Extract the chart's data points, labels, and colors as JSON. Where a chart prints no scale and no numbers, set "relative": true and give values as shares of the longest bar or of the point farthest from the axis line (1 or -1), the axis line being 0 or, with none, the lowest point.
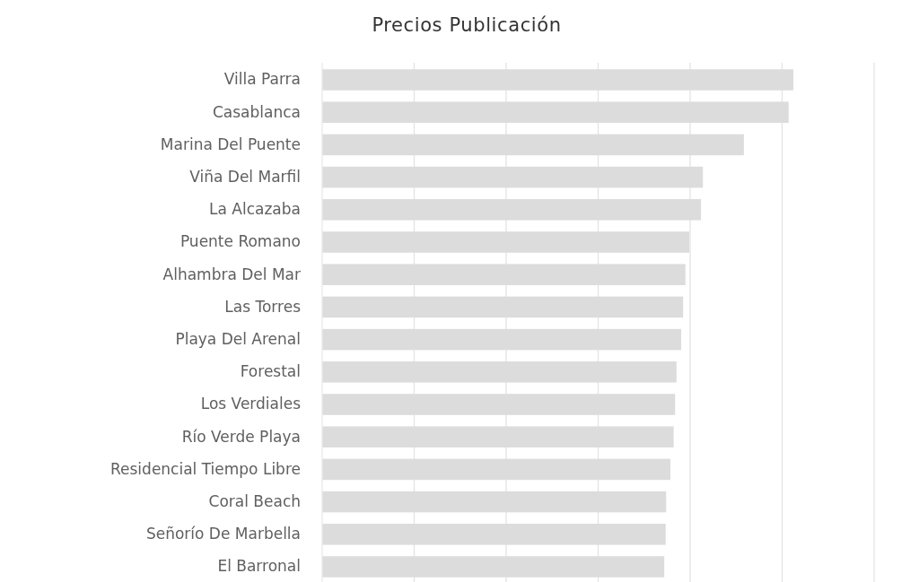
{
  "chart_data": {
    "type": "bar",
    "title": "Precios Publicación",
    "orientation": "horizontal",
    "relative": true,
    "grid": true,
    "color": "#dcdcdc",
    "categories": [
      "Villa Parra",
      "Casablanca",
      "Marina Del Puente",
      "Viña Del Marfil",
      "La Alcazaba",
      "Puente Romano",
      "Alhambra Del Mar",
      "Las Torres",
      "Playa Del Arenal",
      "Forestal",
      "Los Verdiales",
      "Río Verde Playa",
      "Residencial Tiempo Libre",
      "Coral Beach",
      "Señorío De Marbella",
      "El Barronal"
    ],
    "values": [
      1,
      0.99,
      0.895,
      0.808,
      0.804,
      0.779,
      0.771,
      0.766,
      0.762,
      0.752,
      0.749,
      0.746,
      0.739,
      0.73,
      0.729,
      0.726
    ]
  }
}
